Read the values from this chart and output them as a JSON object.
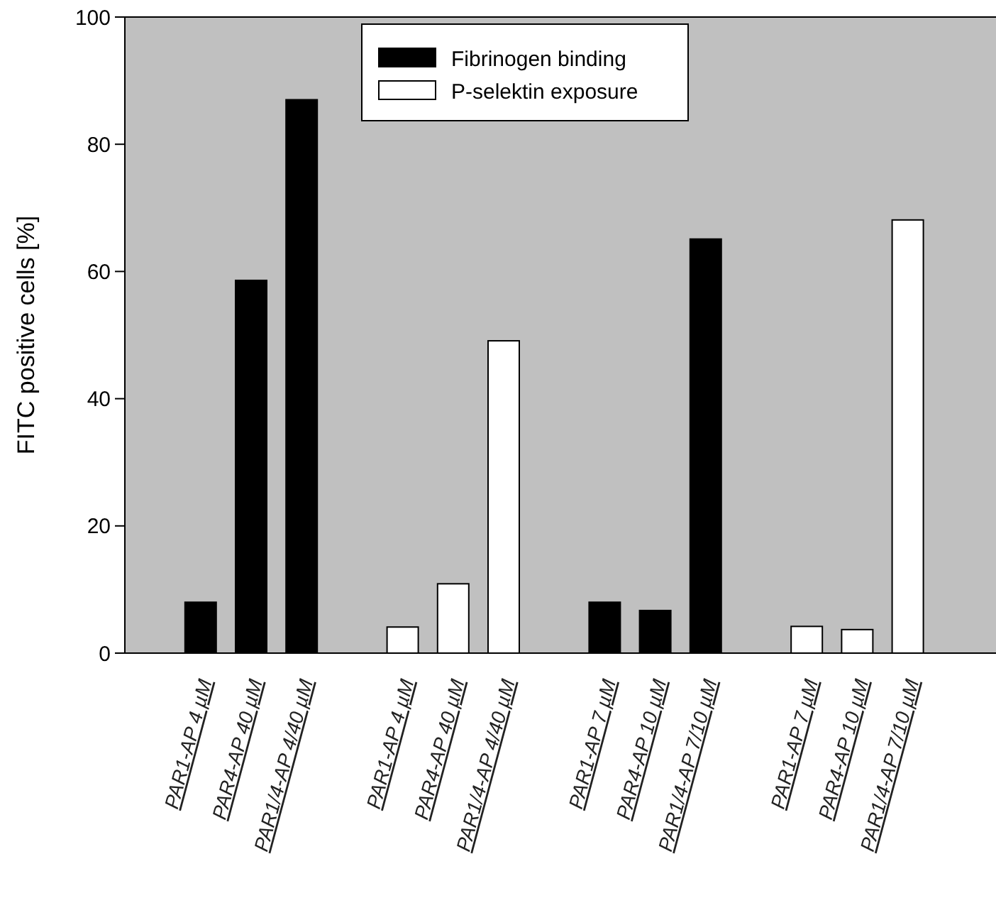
{
  "chart_data": {
    "type": "bar",
    "ylabel": "FITC positive cells [%]",
    "categories": [
      "PAR1-AP 4 µM",
      "PAR4-AP 40 µM",
      "PAR1/4-AP 4/40 µM",
      null,
      "PAR1-AP 4 µM",
      "PAR4-AP 40 µM",
      "PAR1/4-AP 4/40 µM",
      null,
      "PAR1-AP 7 µM",
      "PAR4-AP 10 µM",
      "PAR1/4-AP 7/10 µM",
      null,
      "PAR1-AP 7 µM",
      "PAR4-AP 10 µM",
      "PAR1/4-AP 7/10 µM"
    ],
    "series": [
      {
        "name": "Fibrinogen binding",
        "color": "#000000",
        "values": [
          8.0,
          58.6,
          87.0,
          null,
          null,
          null,
          null,
          null,
          8.0,
          6.7,
          65.1,
          null,
          null,
          null,
          null
        ]
      },
      {
        "name": "P-selektin exposure",
        "color": "#ffffff",
        "values": [
          null,
          null,
          null,
          null,
          4.1,
          10.9,
          49.1,
          null,
          null,
          null,
          null,
          null,
          4.2,
          3.7,
          68.1
        ]
      }
    ],
    "ylim": [
      0,
      100
    ],
    "yticks": [
      0,
      20,
      40,
      60,
      80,
      100
    ],
    "grid": false,
    "legend": "top"
  }
}
